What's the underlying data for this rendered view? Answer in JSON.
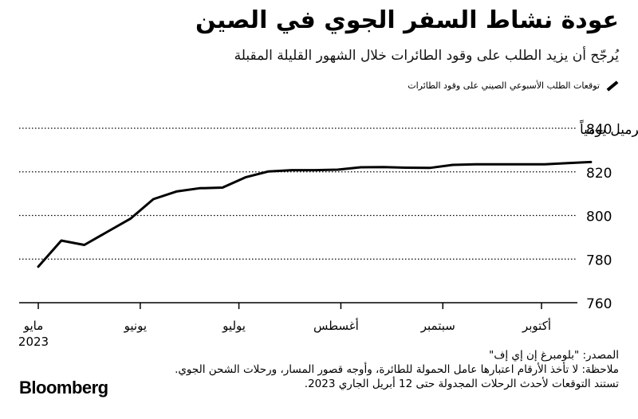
{
  "title": "عودة نشاط السفر الجوي في الصين",
  "subtitle": "يُرجّح أن يزيد الطلب على وقود الطائرات خلال الشهور القليلة المقبلة",
  "legend": {
    "label": "توقعات الطلب الأسبوعي الصيني على وقود الطائرات"
  },
  "chart_data": {
    "type": "line",
    "unit_label": "ألف برميل يومياً",
    "ylim": [
      760,
      840
    ],
    "yticks": [
      760,
      780,
      800,
      820,
      840
    ],
    "ytick_labels": [
      "760",
      "780",
      "800",
      "820",
      "840"
    ],
    "month_ticks": [
      {
        "date": "2023-05-01",
        "label": "مايو",
        "sublabel": "2023"
      },
      {
        "date": "2023-06-01",
        "label": "يونيو"
      },
      {
        "date": "2023-07-01",
        "label": "يوليو"
      },
      {
        "date": "2023-08-01",
        "label": "أغسطس"
      },
      {
        "date": "2023-09-01",
        "label": "سبتمبر"
      },
      {
        "date": "2023-10-01",
        "label": "أكتوبر"
      }
    ],
    "series": [
      {
        "x": [
          "2023-05-01",
          "2023-05-08",
          "2023-05-15",
          "2023-05-22",
          "2023-05-29",
          "2023-06-05",
          "2023-06-12",
          "2023-06-19",
          "2023-06-26",
          "2023-07-03",
          "2023-07-10",
          "2023-07-17",
          "2023-07-24",
          "2023-07-31",
          "2023-08-07",
          "2023-08-14",
          "2023-08-21",
          "2023-08-28",
          "2023-09-04",
          "2023-09-11",
          "2023-09-18",
          "2023-09-25",
          "2023-10-02",
          "2023-10-09",
          "2023-10-16"
        ],
        "values": [
          776.5,
          788.5,
          786.5,
          792.5,
          798.5,
          807.5,
          811.0,
          812.5,
          812.8,
          817.5,
          820.2,
          820.8,
          820.8,
          821.0,
          822.1,
          822.2,
          821.9,
          821.8,
          823.2,
          823.5,
          823.5,
          823.5,
          823.5,
          824.0,
          824.5
        ]
      }
    ],
    "grid": "horizontal",
    "colors": {
      "line": "#000000",
      "grid": "#000000",
      "axis": "#000000"
    }
  },
  "footer": {
    "source": "المصدر: \"بلومبرغ إن إي إف\"",
    "note": "ملاحظة: لا تأخذ الأرقام اعتبارها عامل الحمولة للطائرة، وأوجه قصور المسار، ورحلات الشحن الجوي.",
    "basis": "تستند التوقعات لأحدث الرحلات المجدولة حتى 12 أبريل الجاري 2023."
  },
  "brand": "Bloomberg"
}
